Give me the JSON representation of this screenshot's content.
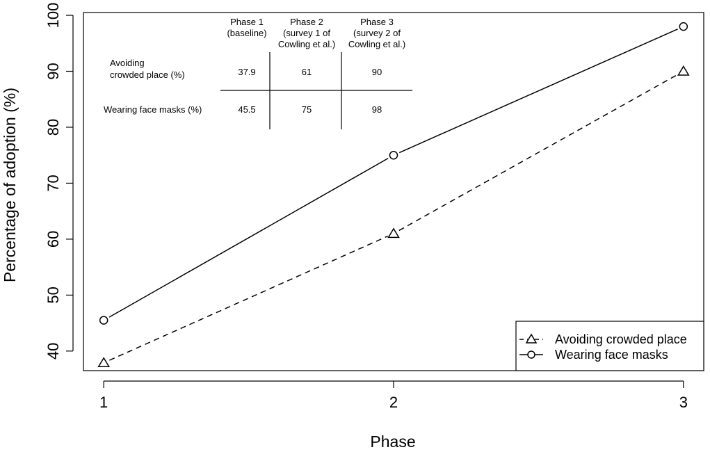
{
  "chart_data": {
    "type": "line",
    "x": [
      1,
      2,
      3
    ],
    "xlabel": "Phase",
    "ylabel": "Percentage of adoption (%)",
    "xlim": [
      0.93,
      3.07
    ],
    "ylim": [
      36.5,
      100.5
    ],
    "xticks": [
      1,
      2,
      3
    ],
    "yticks": [
      40,
      50,
      60,
      70,
      80,
      90,
      100
    ],
    "series": [
      {
        "name": "Avoiding crowded place",
        "values": [
          37.9,
          61,
          90
        ],
        "marker": "triangle",
        "line": "dashed",
        "color": "#000000"
      },
      {
        "name": "Wearing face masks",
        "values": [
          45.5,
          75,
          98
        ],
        "marker": "circle",
        "line": "solid",
        "color": "#000000"
      }
    ],
    "legend_position": "bottom-right",
    "grid": false,
    "inset_table": {
      "columns": [
        [
          "Phase 1",
          "(baseline)"
        ],
        [
          "Phase 2",
          "(survey 1 of",
          "Cowling et al.)"
        ],
        [
          "Phase 3",
          "(survey 2 of",
          "Cowling et al.)"
        ]
      ],
      "rows": [
        {
          "label": [
            "Avoiding",
            "crowded place (%)"
          ],
          "values": [
            "37.9",
            "61",
            "90"
          ]
        },
        {
          "label": [
            "Wearing face masks (%)"
          ],
          "values": [
            "45.5",
            "75",
            "98"
          ]
        }
      ]
    }
  }
}
